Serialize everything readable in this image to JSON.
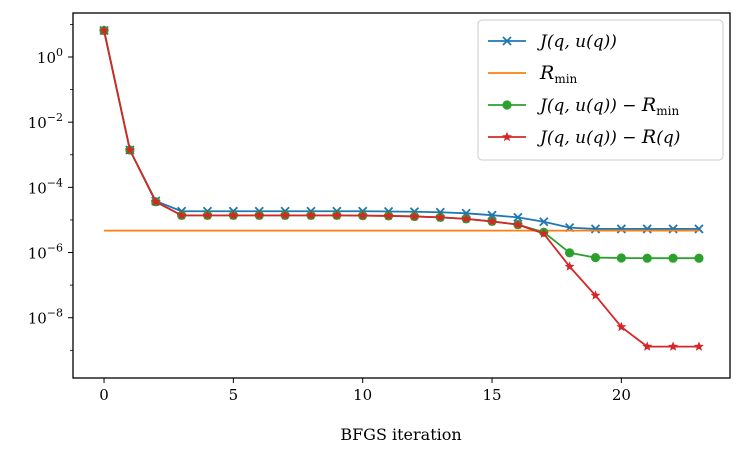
{
  "chart_data": {
    "type": "line",
    "title": "",
    "xlabel": "BFGS iteration",
    "ylabel": "",
    "yscale": "log",
    "xlim": [
      -1.2,
      24.2
    ],
    "ylim": [
      -9.85,
      1.35
    ],
    "xticks": [
      0,
      5,
      10,
      15,
      20
    ],
    "yticks": [
      {
        "exp": 0,
        "base": "10",
        "sup": "0"
      },
      {
        "exp": -2,
        "base": "10",
        "sup": "−2"
      },
      {
        "exp": -4,
        "base": "10",
        "sup": "−4"
      },
      {
        "exp": -6,
        "base": "10",
        "sup": "−6"
      },
      {
        "exp": -8,
        "base": "10",
        "sup": "−8"
      }
    ],
    "legend_position": "top-right",
    "series": [
      {
        "name": "J(q, u(q))",
        "color": "#1f77b4",
        "marker": "x",
        "x": [
          0,
          1,
          2,
          3,
          4,
          5,
          6,
          7,
          8,
          9,
          10,
          11,
          12,
          13,
          14,
          15,
          16,
          17,
          18,
          19,
          20,
          21,
          22,
          23
        ],
        "y": [
          6.5,
          0.0014,
          3.8e-05,
          1.85e-05,
          1.85e-05,
          1.85e-05,
          1.85e-05,
          1.85e-05,
          1.85e-05,
          1.85e-05,
          1.85e-05,
          1.82e-05,
          1.78e-05,
          1.72e-05,
          1.6e-05,
          1.4e-05,
          1.2e-05,
          8.8e-06,
          5.8e-06,
          5.3e-06,
          5.3e-06,
          5.3e-06,
          5.3e-06,
          5.3e-06
        ]
      },
      {
        "name": "R_min",
        "color": "#ff7f0e",
        "marker": "none",
        "x": [
          0,
          23
        ],
        "y": [
          4.7e-06,
          4.7e-06
        ]
      },
      {
        "name": "J(q, u(q)) − R_min",
        "color": "#2ca02c",
        "marker": "o",
        "x": [
          0,
          1,
          2,
          3,
          4,
          5,
          6,
          7,
          8,
          9,
          10,
          11,
          12,
          13,
          14,
          15,
          16,
          17,
          18,
          19,
          20,
          21,
          22,
          23
        ],
        "y": [
          6.5,
          0.0014,
          3.6e-05,
          1.38e-05,
          1.38e-05,
          1.38e-05,
          1.38e-05,
          1.38e-05,
          1.38e-05,
          1.38e-05,
          1.36e-05,
          1.33e-05,
          1.28e-05,
          1.2e-05,
          1.08e-05,
          9e-06,
          7.2e-06,
          4.2e-06,
          9.8e-07,
          7e-07,
          6.8e-07,
          6.7e-07,
          6.7e-07,
          6.7e-07
        ]
      },
      {
        "name": "J(q, u(q)) − R(q)",
        "color": "#d62728",
        "marker": "star",
        "x": [
          0,
          1,
          2,
          3,
          4,
          5,
          6,
          7,
          8,
          9,
          10,
          11,
          12,
          13,
          14,
          15,
          16,
          17,
          18,
          19,
          20,
          21,
          22,
          23
        ],
        "y": [
          6.5,
          0.0014,
          3.6e-05,
          1.38e-05,
          1.38e-05,
          1.38e-05,
          1.38e-05,
          1.38e-05,
          1.38e-05,
          1.38e-05,
          1.36e-05,
          1.33e-05,
          1.28e-05,
          1.2e-05,
          1.08e-05,
          9e-06,
          7.2e-06,
          3.8e-06,
          3.7e-07,
          4.8e-08,
          5.2e-09,
          1.3e-09,
          1.3e-09,
          1.3e-09
        ]
      }
    ],
    "legend": [
      {
        "pre": "J(q, u(q))",
        "cal": "",
        "sub": "",
        "post": ""
      },
      {
        "pre": "",
        "cal": "R",
        "sub": "min",
        "post": ""
      },
      {
        "pre": "J(q, u(q)) − ",
        "cal": "R",
        "sub": "min",
        "post": ""
      },
      {
        "pre": "J(q, u(q)) − ",
        "cal": "R",
        "sub": "",
        "post": "(q)"
      }
    ]
  }
}
